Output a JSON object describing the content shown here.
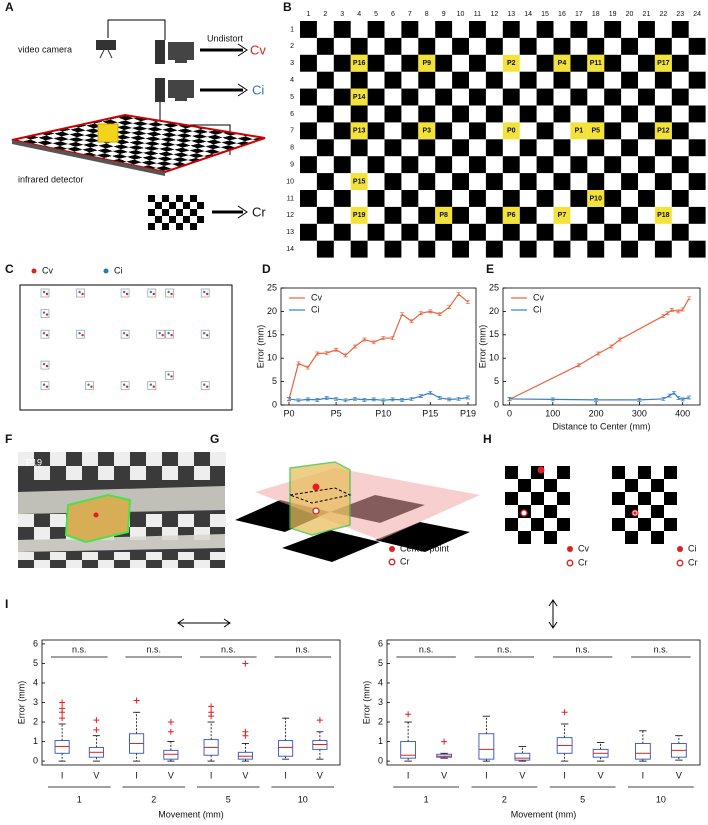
{
  "panel_labels": [
    "A",
    "B",
    "C",
    "D",
    "E",
    "F",
    "G",
    "H",
    "I"
  ],
  "panel_a": {
    "video_camera": "video camera",
    "undistort": "Undistort",
    "cv": "Cv",
    "ci": "Ci",
    "infrared_detector": "infrared detector",
    "cr": "Cr"
  },
  "panel_b": {
    "columns": [
      1,
      2,
      3,
      4,
      5,
      6,
      7,
      8,
      9,
      10,
      11,
      12,
      13,
      14,
      15,
      16,
      17,
      18,
      19,
      20,
      21,
      22,
      23,
      24
    ],
    "rows": [
      1,
      2,
      3,
      4,
      5,
      6,
      7,
      8,
      9,
      10,
      11,
      12,
      13,
      14
    ],
    "points": [
      {
        "label": "P16",
        "col": 4,
        "row": 3
      },
      {
        "label": "P9",
        "col": 8,
        "row": 3
      },
      {
        "label": "P2",
        "col": 13,
        "row": 3
      },
      {
        "label": "P4",
        "col": 16,
        "row": 3
      },
      {
        "label": "P11",
        "col": 18,
        "row": 3
      },
      {
        "label": "P17",
        "col": 22,
        "row": 3
      },
      {
        "label": "P14",
        "col": 4,
        "row": 5
      },
      {
        "label": "P13",
        "col": 4,
        "row": 7
      },
      {
        "label": "P3",
        "col": 8,
        "row": 7
      },
      {
        "label": "P0",
        "col": 13,
        "row": 7
      },
      {
        "label": "P1",
        "col": 17,
        "row": 7
      },
      {
        "label": "P5",
        "col": 18,
        "row": 7
      },
      {
        "label": "P12",
        "col": 22,
        "row": 7
      },
      {
        "label": "P15",
        "col": 4,
        "row": 10
      },
      {
        "label": "P10",
        "col": 18,
        "row": 11
      },
      {
        "label": "P19",
        "col": 4,
        "row": 12
      },
      {
        "label": "P8",
        "col": 9,
        "row": 12
      },
      {
        "label": "P6",
        "col": 13,
        "row": 12
      },
      {
        "label": "P7",
        "col": 16,
        "row": 12
      },
      {
        "label": "P18",
        "col": 22,
        "row": 12
      }
    ]
  },
  "panel_c": {
    "cv": "Cv",
    "ci": "Ci"
  },
  "panel_f": {
    "label": "P19"
  },
  "panel_g": {
    "center_point": "Center point",
    "cr": "Cr"
  },
  "panel_h": {
    "left_cv": "Cv",
    "left_cr": "Cr",
    "right_ci": "Ci",
    "right_cr": "Cr"
  },
  "chart_data": [
    {
      "type": "line",
      "ylabel": "Error (mm)",
      "categories": [
        "P0",
        null,
        null,
        null,
        null,
        "P5",
        null,
        null,
        null,
        null,
        "P10",
        null,
        null,
        null,
        null,
        "P15",
        null,
        null,
        null,
        "P19"
      ],
      "series": [
        {
          "name": "Cv",
          "color": "#e8643c",
          "values": [
            1.2,
            8.9,
            8.0,
            11.0,
            11.1,
            11.8,
            10.6,
            12.5,
            14.0,
            13.4,
            14.3,
            14.3,
            19.4,
            17.9,
            19.6,
            20.0,
            19.4,
            20.9,
            23.7,
            22.0
          ]
        },
        {
          "name": "Ci",
          "color": "#3a7fc0",
          "values": [
            1.3,
            1.0,
            1.2,
            1.1,
            1.5,
            1.3,
            1.0,
            1.3,
            1.1,
            1.2,
            1.0,
            1.2,
            1.1,
            1.3,
            1.9,
            2.6,
            1.5,
            1.2,
            1.3,
            1.6
          ]
        }
      ],
      "ylim": [
        0,
        25
      ],
      "yticks": [
        0,
        5,
        10,
        15,
        20,
        25
      ]
    },
    {
      "type": "line",
      "ylabel": "Error (mm)",
      "xlabel": "Distance to Center (mm)",
      "series": [
        {
          "name": "Cv",
          "color": "#e8643c",
          "x": [
            0,
            160,
            205,
            235,
            255,
            355,
            365,
            375,
            390,
            400,
            415
          ],
          "values": [
            1.2,
            8.5,
            11.0,
            12.5,
            14.0,
            19.0,
            19.6,
            20.3,
            20.0,
            20.4,
            22.8
          ]
        },
        {
          "name": "Ci",
          "color": "#3a7fc0",
          "x": [
            0,
            100,
            200,
            300,
            355,
            370,
            380,
            390,
            400,
            415
          ],
          "values": [
            1.3,
            1.2,
            1.1,
            1.1,
            1.3,
            2.0,
            2.6,
            1.5,
            1.2,
            1.6
          ]
        }
      ],
      "xlim": [
        -15,
        440
      ],
      "xticks": [
        0,
        100,
        200,
        300,
        400
      ],
      "ylim": [
        0,
        25
      ],
      "yticks": [
        0,
        5,
        10,
        15,
        20,
        25
      ]
    },
    {
      "type": "box",
      "ylabel": "Error (mm)",
      "xlabel": "Movement (mm)",
      "groups": [
        "1",
        "2",
        "5",
        "10"
      ],
      "categories": [
        "I",
        "V",
        "I",
        "V",
        "I",
        "V",
        "I",
        "V"
      ],
      "annotations": [
        "n.s.",
        "n.s.",
        "n.s.",
        "n.s."
      ],
      "box_color": "#3050c8",
      "median_color": "#e02020",
      "outlier_color": "#e02020",
      "ylim": [
        -0.2,
        6.2
      ],
      "yticks": [
        0,
        1,
        2,
        3,
        4,
        5,
        6
      ],
      "boxes": [
        {
          "min": 0,
          "q1": 0.4,
          "median": 0.75,
          "q3": 1.05,
          "max": 1.9,
          "outliers": [
            2.2,
            2.5,
            2.7,
            3.0
          ]
        },
        {
          "min": 0,
          "q1": 0.2,
          "median": 0.45,
          "q3": 0.7,
          "max": 1.3,
          "outliers": [
            1.6,
            2.1
          ]
        },
        {
          "min": 0,
          "q1": 0.4,
          "median": 0.9,
          "q3": 1.4,
          "max": 2.5,
          "outliers": [
            3.1
          ]
        },
        {
          "min": 0,
          "q1": 0.1,
          "median": 0.35,
          "q3": 0.55,
          "max": 1.0,
          "outliers": [
            1.5,
            2.0
          ]
        },
        {
          "min": 0,
          "q1": 0.3,
          "median": 0.7,
          "q3": 1.1,
          "max": 2.0,
          "outliers": [
            2.3,
            2.5,
            2.8
          ]
        },
        {
          "min": 0,
          "q1": 0.1,
          "median": 0.25,
          "q3": 0.45,
          "max": 0.9,
          "outliers": [
            1.3,
            1.5,
            5.0
          ]
        },
        {
          "min": 0.1,
          "q1": 0.25,
          "median": 0.7,
          "q3": 1.05,
          "max": 2.2,
          "outliers": []
        },
        {
          "min": 0.1,
          "q1": 0.6,
          "median": 0.85,
          "q3": 1.05,
          "max": 1.5,
          "outliers": [
            2.1
          ]
        }
      ]
    },
    {
      "type": "box",
      "ylabel": "Error (mm)",
      "xlabel": "Movement (mm)",
      "groups": [
        "1",
        "2",
        "5",
        "10"
      ],
      "categories": [
        "I",
        "V",
        "I",
        "V",
        "I",
        "V",
        "I",
        "V"
      ],
      "annotations": [
        "n.s.",
        "n.s.",
        "n.s.",
        "n.s."
      ],
      "box_color": "#3050c8",
      "median_color": "#e02020",
      "outlier_color": "#e02020",
      "ylim": [
        -0.2,
        6.2
      ],
      "yticks": [
        0,
        1,
        2,
        3,
        4,
        5,
        6
      ],
      "boxes": [
        {
          "min": 0,
          "q1": 0.15,
          "median": 0.3,
          "q3": 1.0,
          "max": 2.0,
          "outliers": [
            2.4
          ]
        },
        {
          "min": 0.15,
          "q1": 0.2,
          "median": 0.25,
          "q3": 0.35,
          "max": 0.4,
          "outliers": [
            1.0
          ]
        },
        {
          "min": 0,
          "q1": 0.1,
          "median": 0.6,
          "q3": 1.4,
          "max": 2.3,
          "outliers": []
        },
        {
          "min": 0,
          "q1": 0.05,
          "median": 0.15,
          "q3": 0.4,
          "max": 0.75,
          "outliers": []
        },
        {
          "min": 0,
          "q1": 0.4,
          "median": 0.8,
          "q3": 1.2,
          "max": 1.9,
          "outliers": [
            2.5
          ]
        },
        {
          "min": 0,
          "q1": 0.2,
          "median": 0.4,
          "q3": 0.6,
          "max": 0.95,
          "outliers": []
        },
        {
          "min": 0,
          "q1": 0.1,
          "median": 0.4,
          "q3": 0.9,
          "max": 1.55,
          "outliers": []
        },
        {
          "min": 0.05,
          "q1": 0.2,
          "median": 0.55,
          "q3": 0.9,
          "max": 1.3,
          "outliers": []
        }
      ]
    }
  ]
}
